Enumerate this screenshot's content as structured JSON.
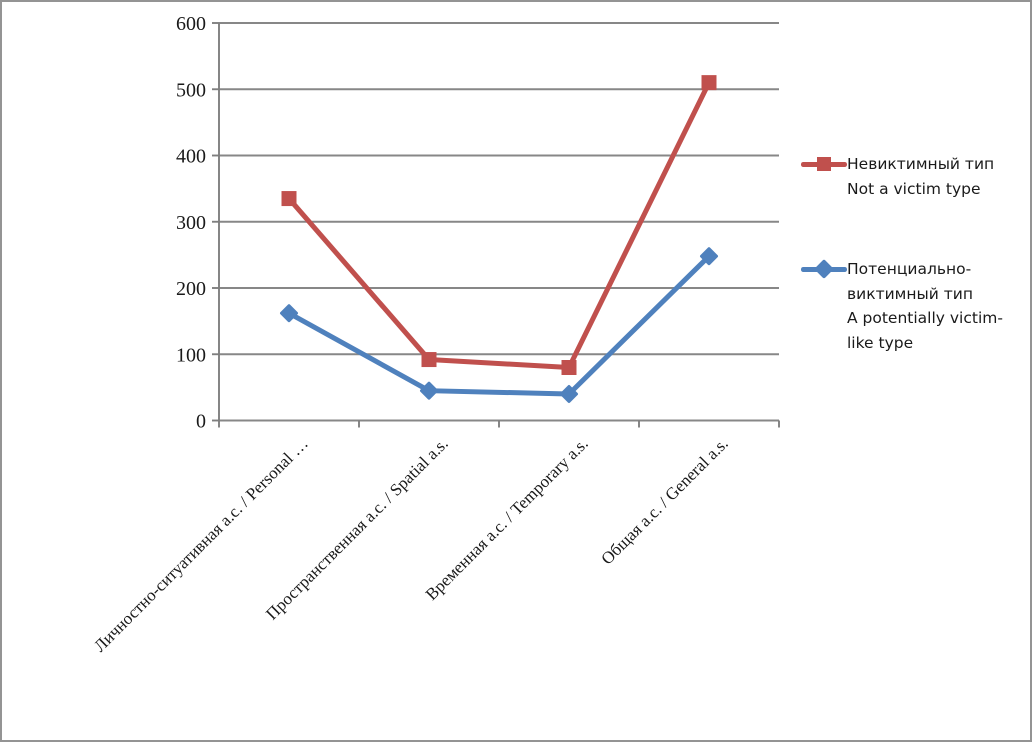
{
  "window": {
    "background": "#ffffff",
    "border_color": "#949494"
  },
  "chart_data": {
    "type": "line",
    "title": "",
    "xlabel": "",
    "ylabel": "",
    "categories": [
      "Личностно-ситуативная а.с. / Personal …",
      "Пространственная а.с. / Spatial a.s.",
      "Временная а.с. / Temporary a.s.",
      "Общая а.с. / General a.s."
    ],
    "series": [
      {
        "name": "Невиктимный тип Not a victim type",
        "legend_lines": [
          "Невиктимный тип",
          "Not a victim type"
        ],
        "values": [
          335,
          92,
          80,
          510
        ],
        "color": "#C0504D",
        "marker": "square"
      },
      {
        "name": "Потенциально-виктимный тип A potentially victim-like type",
        "legend_lines": [
          "Потенциально-",
          "виктимный тип",
          "A potentially victim-",
          "like type"
        ],
        "values": [
          162,
          45,
          40,
          248
        ],
        "color": "#4F81BD",
        "marker": "diamond"
      }
    ],
    "ylim": [
      0,
      600
    ],
    "yticks": [
      0,
      100,
      200,
      300,
      400,
      500,
      600
    ],
    "grid": true,
    "legend_position": "right",
    "grid_color": "#878787",
    "axis_color": "#7f7f7f",
    "text_color": "#1a1a1a",
    "x_label_angle_deg": -45
  }
}
